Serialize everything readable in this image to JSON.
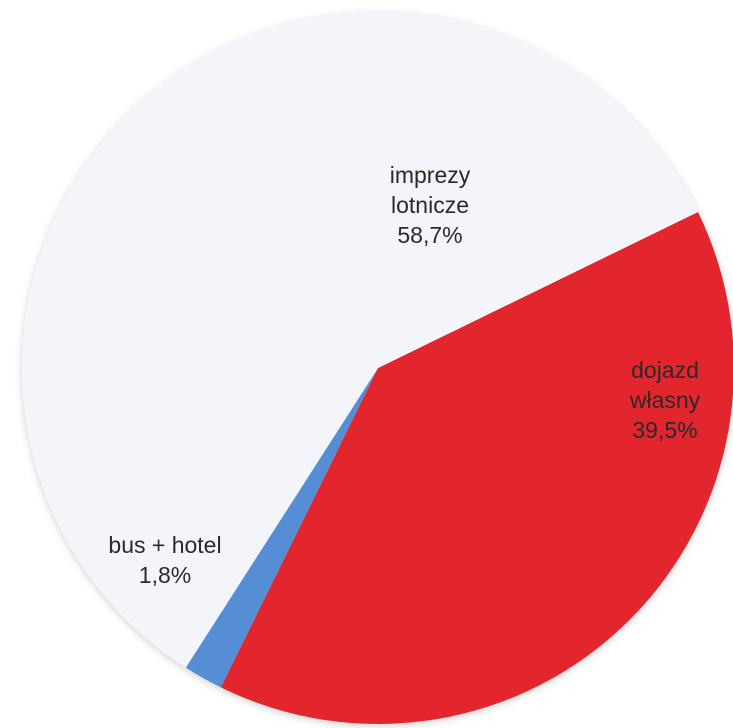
{
  "chart_data": {
    "type": "pie",
    "categories": [
      "dojazd własny",
      "bus + hotel",
      "imprezy lotnicze"
    ],
    "values": [
      39.5,
      1.8,
      58.7
    ],
    "value_labels": [
      "39,5%",
      "1,8%",
      "58,7%"
    ],
    "colors": [
      "#e3262d",
      "#558ed5",
      "#f3f5fa"
    ]
  }
}
